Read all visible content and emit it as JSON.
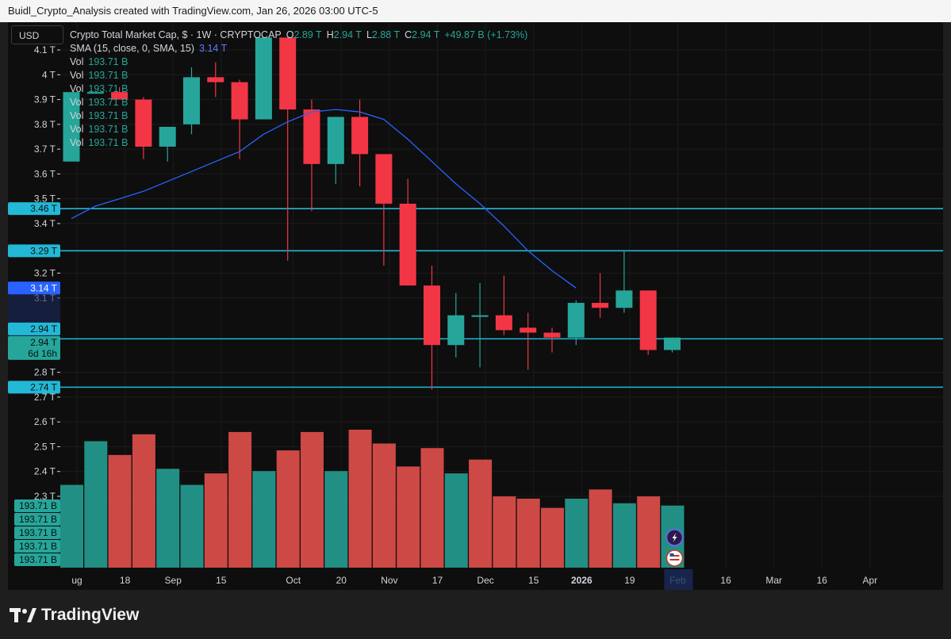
{
  "window_title": "Buidl_Crypto_Analysis created with TradingView.com, Jan 26, 2026 03:00 UTC-5",
  "currency_button": "USD",
  "legend": {
    "symbol": "Crypto Total Market Cap, $ · 1W · CRYPTOCAP",
    "o_label": "O",
    "o_value": "2.89 T",
    "h_label": "H",
    "h_value": "2.94 T",
    "l_label": "L",
    "l_value": "2.88 T",
    "c_label": "C",
    "c_value": "2.94 T",
    "change": "+49.87 B (+1.73%)",
    "sma_label": "SMA (15, close, 0, SMA, 15)",
    "sma_value": "3.14 T",
    "vol_label": "Vol",
    "vol_value": "193.71 B",
    "vol_rows": 7
  },
  "brand": "TradingView",
  "colors": {
    "up": "#26a69a",
    "down": "#f23645",
    "sma": "#2962ff",
    "hline": "#22b8d6",
    "vol_up": "#26a69a",
    "vol_down": "#ef5350"
  },
  "chart_data": {
    "type": "candlestick",
    "ylim": [
      2.67,
      4.14
    ],
    "yticks": [
      "4.1 T",
      "4 T",
      "3.9 T",
      "3.8 T",
      "3.7 T",
      "3.6 T",
      "3.5 T",
      "3.4 T",
      "3.2 T",
      "3.1 T",
      "2.8 T",
      "2.7 T",
      "2.6 T",
      "2.5 T",
      "2.4 T",
      "2.3 T"
    ],
    "ytick_values": [
      4.1,
      4.0,
      3.9,
      3.8,
      3.7,
      3.6,
      3.5,
      3.4,
      3.2,
      3.1,
      2.8,
      2.7,
      2.6,
      2.5,
      2.4,
      2.3
    ],
    "xticks": [
      "ug",
      "18",
      "Sep",
      "15",
      "Oct",
      "20",
      "Nov",
      "17",
      "Dec",
      "15",
      "2026",
      "19",
      "Feb",
      "16",
      "Mar",
      "16",
      "Apr"
    ],
    "xtick_bold": [
      false,
      false,
      false,
      false,
      false,
      false,
      false,
      false,
      false,
      false,
      true,
      false,
      false,
      false,
      false,
      false,
      false
    ],
    "candles": [
      {
        "o": 3.65,
        "h": 3.93,
        "l": 3.65,
        "c": 3.93
      },
      {
        "o": 3.93,
        "h": 3.93,
        "l": 3.93,
        "c": 3.93
      },
      {
        "o": 3.93,
        "h": 3.95,
        "l": 3.9,
        "c": 3.9
      },
      {
        "o": 3.9,
        "h": 3.91,
        "l": 3.66,
        "c": 3.71
      },
      {
        "o": 3.71,
        "h": 3.79,
        "l": 3.65,
        "c": 3.79
      },
      {
        "o": 3.8,
        "h": 4.03,
        "l": 3.76,
        "c": 3.99
      },
      {
        "o": 3.99,
        "h": 4.05,
        "l": 3.91,
        "c": 3.97
      },
      {
        "o": 3.97,
        "h": 3.98,
        "l": 3.66,
        "c": 3.82
      },
      {
        "o": 3.82,
        "h": 4.15,
        "l": 3.82,
        "c": 4.15
      },
      {
        "o": 4.15,
        "h": 4.15,
        "l": 3.25,
        "c": 3.86
      },
      {
        "o": 3.86,
        "h": 3.9,
        "l": 3.45,
        "c": 3.64
      },
      {
        "o": 3.64,
        "h": 3.83,
        "l": 3.56,
        "c": 3.83
      },
      {
        "o": 3.83,
        "h": 3.9,
        "l": 3.55,
        "c": 3.68
      },
      {
        "o": 3.68,
        "h": 3.68,
        "l": 3.23,
        "c": 3.48
      },
      {
        "o": 3.48,
        "h": 3.58,
        "l": 3.15,
        "c": 3.15
      },
      {
        "o": 3.15,
        "h": 3.23,
        "l": 2.73,
        "c": 2.91
      },
      {
        "o": 2.91,
        "h": 3.12,
        "l": 2.86,
        "c": 3.03
      },
      {
        "o": 3.03,
        "h": 3.16,
        "l": 2.82,
        "c": 3.03
      },
      {
        "o": 3.03,
        "h": 3.19,
        "l": 2.95,
        "c": 2.97
      },
      {
        "o": 2.98,
        "h": 3.04,
        "l": 2.81,
        "c": 2.96
      },
      {
        "o": 2.96,
        "h": 2.98,
        "l": 2.88,
        "c": 2.94
      },
      {
        "o": 2.94,
        "h": 3.09,
        "l": 2.91,
        "c": 3.08
      },
      {
        "o": 3.08,
        "h": 3.2,
        "l": 3.02,
        "c": 3.06
      },
      {
        "o": 3.06,
        "h": 3.29,
        "l": 3.04,
        "c": 3.13
      },
      {
        "o": 3.13,
        "h": 3.13,
        "l": 2.87,
        "c": 2.89
      },
      {
        "o": 2.89,
        "h": 2.94,
        "l": 2.88,
        "c": 2.94
      }
    ],
    "volume": [
      {
        "v": 0.36,
        "up": true
      },
      {
        "v": 0.55,
        "up": true
      },
      {
        "v": 0.49,
        "up": false
      },
      {
        "v": 0.58,
        "up": false
      },
      {
        "v": 0.43,
        "up": true
      },
      {
        "v": 0.36,
        "up": true
      },
      {
        "v": 0.41,
        "up": false
      },
      {
        "v": 0.59,
        "up": false
      },
      {
        "v": 0.42,
        "up": true
      },
      {
        "v": 0.51,
        "up": false
      },
      {
        "v": 0.59,
        "up": false
      },
      {
        "v": 0.42,
        "up": true
      },
      {
        "v": 0.6,
        "up": false
      },
      {
        "v": 0.54,
        "up": false
      },
      {
        "v": 0.44,
        "up": false
      },
      {
        "v": 0.52,
        "up": false
      },
      {
        "v": 0.41,
        "up": true
      },
      {
        "v": 0.47,
        "up": false
      },
      {
        "v": 0.31,
        "up": false
      },
      {
        "v": 0.3,
        "up": false
      },
      {
        "v": 0.26,
        "up": false
      },
      {
        "v": 0.3,
        "up": true
      },
      {
        "v": 0.34,
        "up": false
      },
      {
        "v": 0.28,
        "up": true
      },
      {
        "v": 0.31,
        "up": false
      },
      {
        "v": 0.27,
        "up": true
      }
    ],
    "sma": [
      3.42,
      3.47,
      3.5,
      3.53,
      3.57,
      3.61,
      3.65,
      3.69,
      3.76,
      3.81,
      3.85,
      3.86,
      3.85,
      3.82,
      3.74,
      3.65,
      3.56,
      3.48,
      3.39,
      3.29,
      3.21,
      3.14
    ],
    "hlines": [
      {
        "value": 3.46,
        "label": "3.46 T"
      },
      {
        "value": 3.29,
        "label": "3.29 T"
      },
      {
        "value": 2.935,
        "label": "2.94 T"
      },
      {
        "value": 2.74,
        "label": "2.74 T"
      }
    ],
    "price_tags": {
      "sma_tag": "3.14 T",
      "last_tag": "2.94 T",
      "last_price": "2.94 T",
      "countdown": "6d 16h"
    }
  }
}
